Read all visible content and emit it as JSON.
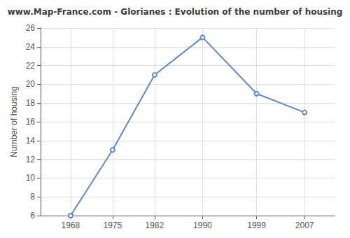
{
  "chart_data": {
    "type": "line",
    "title": "www.Map-France.com - Glorianes : Evolution of the number of housing",
    "ylabel": "Number of housing",
    "x": [
      1968,
      1975,
      1982,
      1990,
      1999,
      2007
    ],
    "values": [
      6,
      13,
      21,
      25,
      19,
      17
    ],
    "xlim": [
      1963,
      2012
    ],
    "xticks": [
      1968,
      1975,
      1982,
      1990,
      1999,
      2007
    ],
    "ylim": [
      6,
      26
    ],
    "yticks": [
      6,
      8,
      10,
      12,
      14,
      16,
      18,
      20,
      22,
      24,
      26
    ],
    "color": "#6688bb",
    "marker": "circle",
    "grid": true
  }
}
